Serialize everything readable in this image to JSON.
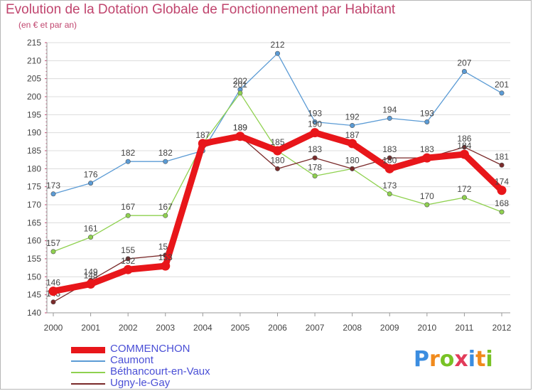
{
  "title": "Evolution de la Dotation Globale de Fonctionnement par Habitant",
  "subtitle": "(en € et par an)",
  "brand": {
    "text": "Proxiti",
    "letter_colors": [
      "#3b8de0",
      "#f08a1c",
      "#78c225",
      "#e23b5a",
      "#3b8de0",
      "#f08a1c",
      "#78c225"
    ]
  },
  "chart_data": {
    "type": "line",
    "title": "Evolution de la Dotation Globale de Fonctionnement par Habitant",
    "subtitle": "(en € et par an)",
    "x": [
      "2000",
      "2001",
      "2002",
      "2003",
      "2004",
      "2005",
      "2006",
      "2007",
      "2008",
      "2009",
      "2010",
      "2011",
      "2012"
    ],
    "ylim": [
      140,
      215
    ],
    "yticks": [
      140,
      145,
      150,
      155,
      160,
      165,
      170,
      175,
      180,
      185,
      190,
      195,
      200,
      205,
      210,
      215
    ],
    "grid": "horizontal",
    "legend_position": "bottom-left",
    "series": [
      {
        "name": "Caumont",
        "color": "#5b9bd5",
        "values": [
          173,
          176,
          182,
          182,
          185,
          202,
          212,
          193,
          192,
          194,
          193,
          207,
          201
        ],
        "labels": [
          "173",
          "176",
          "182",
          "182",
          "",
          "202",
          "212",
          "193",
          "192",
          "194",
          "193",
          "207",
          "201"
        ]
      },
      {
        "name": "Béthancourt-en-Vaux",
        "color": "#8fd14f",
        "values": [
          157,
          161,
          167,
          167,
          187,
          201,
          185,
          178,
          180,
          173,
          170,
          172,
          168
        ],
        "labels": [
          "157",
          "161",
          "167",
          "167",
          "",
          "201",
          "",
          "178",
          "",
          "173",
          "170",
          "172",
          "168"
        ]
      },
      {
        "name": "Ugny-le-Gay",
        "color": "#7a2a2a",
        "values": [
          143,
          149,
          155,
          156,
          186,
          189,
          180,
          183,
          180,
          183,
          183,
          186,
          181
        ],
        "labels": [
          "143",
          "149",
          "155",
          "156",
          "",
          "189",
          "180",
          "183",
          "180",
          "183",
          "",
          "186",
          "181"
        ]
      },
      {
        "name": "COMMENCHON",
        "color": "#e8161a",
        "values": [
          146,
          148,
          152,
          153,
          187,
          189,
          185,
          190,
          187,
          180,
          183,
          184,
          174
        ],
        "labels": [
          "146",
          "148",
          "152",
          "153",
          "187",
          "189",
          "185",
          "190",
          "187",
          "180",
          "183",
          "184",
          "174"
        ]
      }
    ]
  },
  "legend": [
    {
      "name": "COMMENCHON",
      "color": "#e8161a",
      "thickness": 9
    },
    {
      "name": "Caumont",
      "color": "#5b9bd5",
      "thickness": 2
    },
    {
      "name": "Béthancourt-en-Vaux",
      "color": "#8fd14f",
      "thickness": 2
    },
    {
      "name": "Ugny-le-Gay",
      "color": "#7a2a2a",
      "thickness": 2
    }
  ]
}
